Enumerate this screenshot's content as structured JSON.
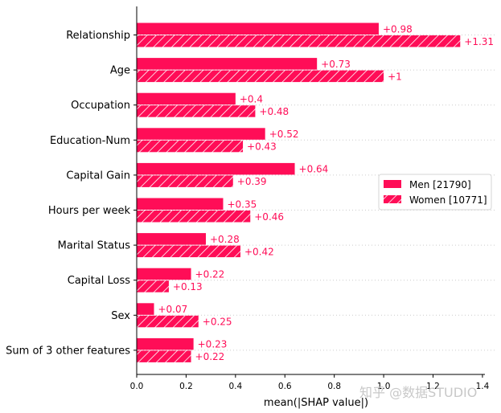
{
  "chart_data": {
    "type": "bar",
    "orientation": "horizontal",
    "categories": [
      "Relationship",
      "Age",
      "Occupation",
      "Education-Num",
      "Capital Gain",
      "Hours per week",
      "Marital Status",
      "Capital Loss",
      "Sex",
      "Sum of 3 other features"
    ],
    "series": [
      {
        "name": "Men [21790]",
        "values": [
          0.98,
          0.73,
          0.4,
          0.52,
          0.64,
          0.35,
          0.28,
          0.22,
          0.07,
          0.23
        ],
        "labels": [
          "+0.98",
          "+0.73",
          "+0.4",
          "+0.52",
          "+0.64",
          "+0.35",
          "+0.28",
          "+0.22",
          "+0.07",
          "+0.23"
        ]
      },
      {
        "name": "Women [10771]",
        "values": [
          1.31,
          1.0,
          0.48,
          0.43,
          0.39,
          0.46,
          0.42,
          0.13,
          0.25,
          0.22
        ],
        "labels": [
          "+1.31",
          "+1",
          "+0.48",
          "+0.43",
          "+0.39",
          "+0.46",
          "+0.42",
          "+0.13",
          "+0.25",
          "+0.22"
        ]
      }
    ],
    "xlabel": "mean(|SHAP value|)",
    "xlim": [
      0,
      1.41
    ],
    "xticks": [
      "0.0",
      "0.2",
      "0.4",
      "0.6",
      "0.8",
      "1.0",
      "1.2",
      "1.4"
    ],
    "legend_position": "center-right",
    "colors": {
      "bar": "#ff0d57",
      "label": "#ff0d57",
      "hatch": "#ffffff",
      "grid": "#cccccc"
    }
  },
  "watermark": "知乎 @数据STUDIO"
}
